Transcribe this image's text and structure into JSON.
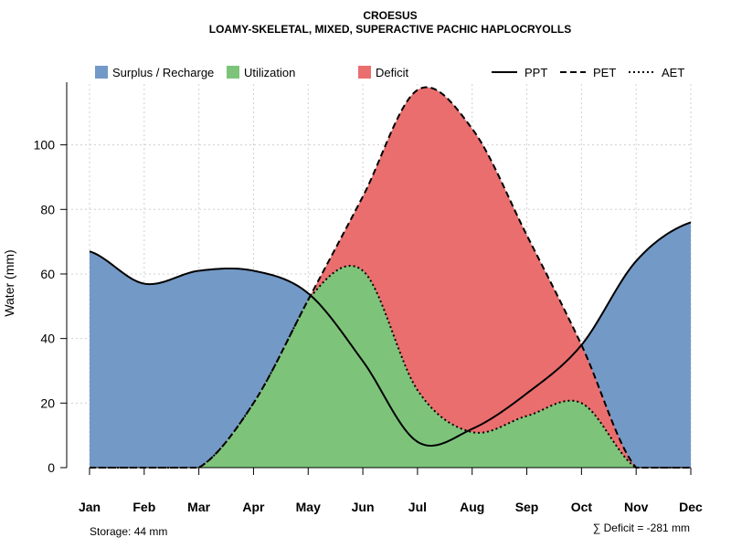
{
  "title": "CROESUS",
  "subtitle": "LOAMY-SKELETAL, MIXED, SUPERACTIVE PACHIC HAPLOCRYOLLS",
  "legend": {
    "surplus": "Surplus / Recharge",
    "utilization": "Utilization",
    "deficit": "Deficit",
    "ppt": "PPT",
    "pet": "PET",
    "aet": "AET"
  },
  "colors": {
    "surplus": "#7399c6",
    "utilization": "#7dc47a",
    "deficit": "#ea6e6e",
    "grid": "#cfcfcf"
  },
  "footer": {
    "storage": "Storage: 44 mm",
    "deficit": "∑ Deficit = -281 mm"
  },
  "chart_data": {
    "type": "area",
    "xlabel": "",
    "ylabel": "Water (mm)",
    "ylim": [
      0,
      118
    ],
    "yticks": [
      0,
      20,
      40,
      60,
      80,
      100
    ],
    "categories": [
      "Jan",
      "Feb",
      "Mar",
      "Apr",
      "May",
      "Jun",
      "Jul",
      "Aug",
      "Sep",
      "Oct",
      "Nov",
      "Dec"
    ],
    "grid": true,
    "legend_position": "top",
    "series": [
      {
        "name": "PPT",
        "style": "solid",
        "values": [
          67,
          57,
          61,
          61,
          54,
          33,
          8,
          12,
          23,
          38,
          64,
          76
        ]
      },
      {
        "name": "PET",
        "style": "dashed",
        "values": [
          0,
          0,
          0,
          20,
          52,
          84,
          117,
          105,
          72,
          38,
          0,
          0
        ]
      },
      {
        "name": "AET",
        "style": "dotted",
        "values": [
          0,
          0,
          0,
          20,
          52,
          61,
          24,
          11,
          16,
          20,
          0,
          0
        ]
      }
    ]
  }
}
